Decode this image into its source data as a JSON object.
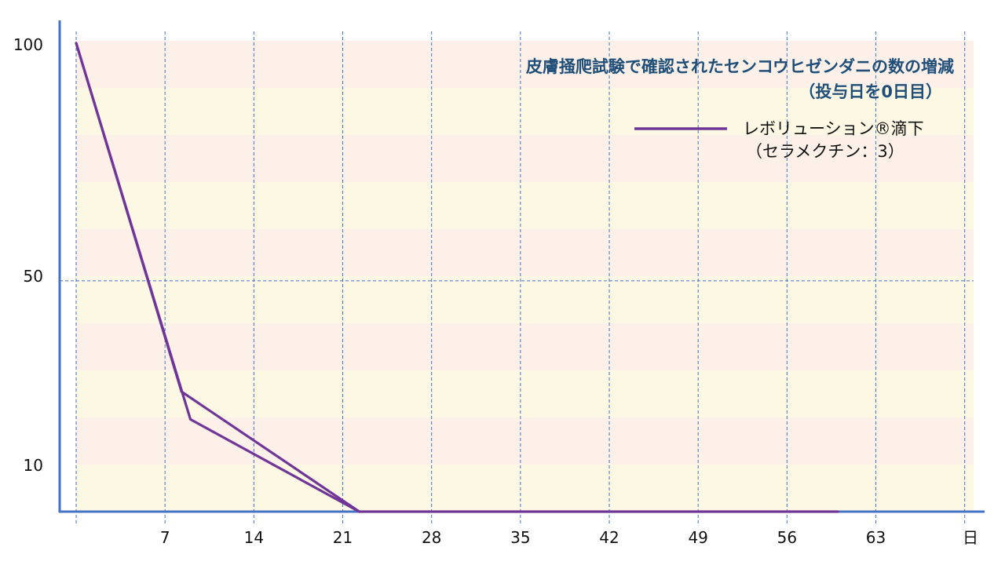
{
  "chart_data": {
    "type": "line",
    "title": "皮膚掻爬試験で確認されたセンコウヒゼンダニの数の増減",
    "subtitle": "（投与日を0日目）",
    "xlabel": "日",
    "ylabel": "",
    "x_ticks": [
      7,
      14,
      21,
      28,
      35,
      42,
      49,
      56,
      63
    ],
    "y_ticks": [
      10,
      50,
      100
    ],
    "xlim": [
      -1.3,
      70.7
    ],
    "ylim": [
      0,
      102
    ],
    "grid": true,
    "legend_position": "top-right",
    "series": [
      {
        "name": "レボリューション®滴下",
        "name_line2": "（セラメクチン：3）",
        "color": "#6f3597",
        "lines": [
          {
            "x": [
              0,
              8.3,
              22.3,
              35,
              42,
              60
            ],
            "y": [
              101.5,
              26,
              0,
              0,
              0,
              0
            ]
          },
          {
            "x": [
              0,
              9,
              22.3
            ],
            "y": [
              101.5,
              20,
              0
            ]
          }
        ]
      }
    ],
    "colors": {
      "axis": "#4472c4",
      "grid": "#4472c4",
      "band_a": "#fdf0e8",
      "band_b": "#fdf8e4",
      "title": "#1f4e79"
    }
  }
}
